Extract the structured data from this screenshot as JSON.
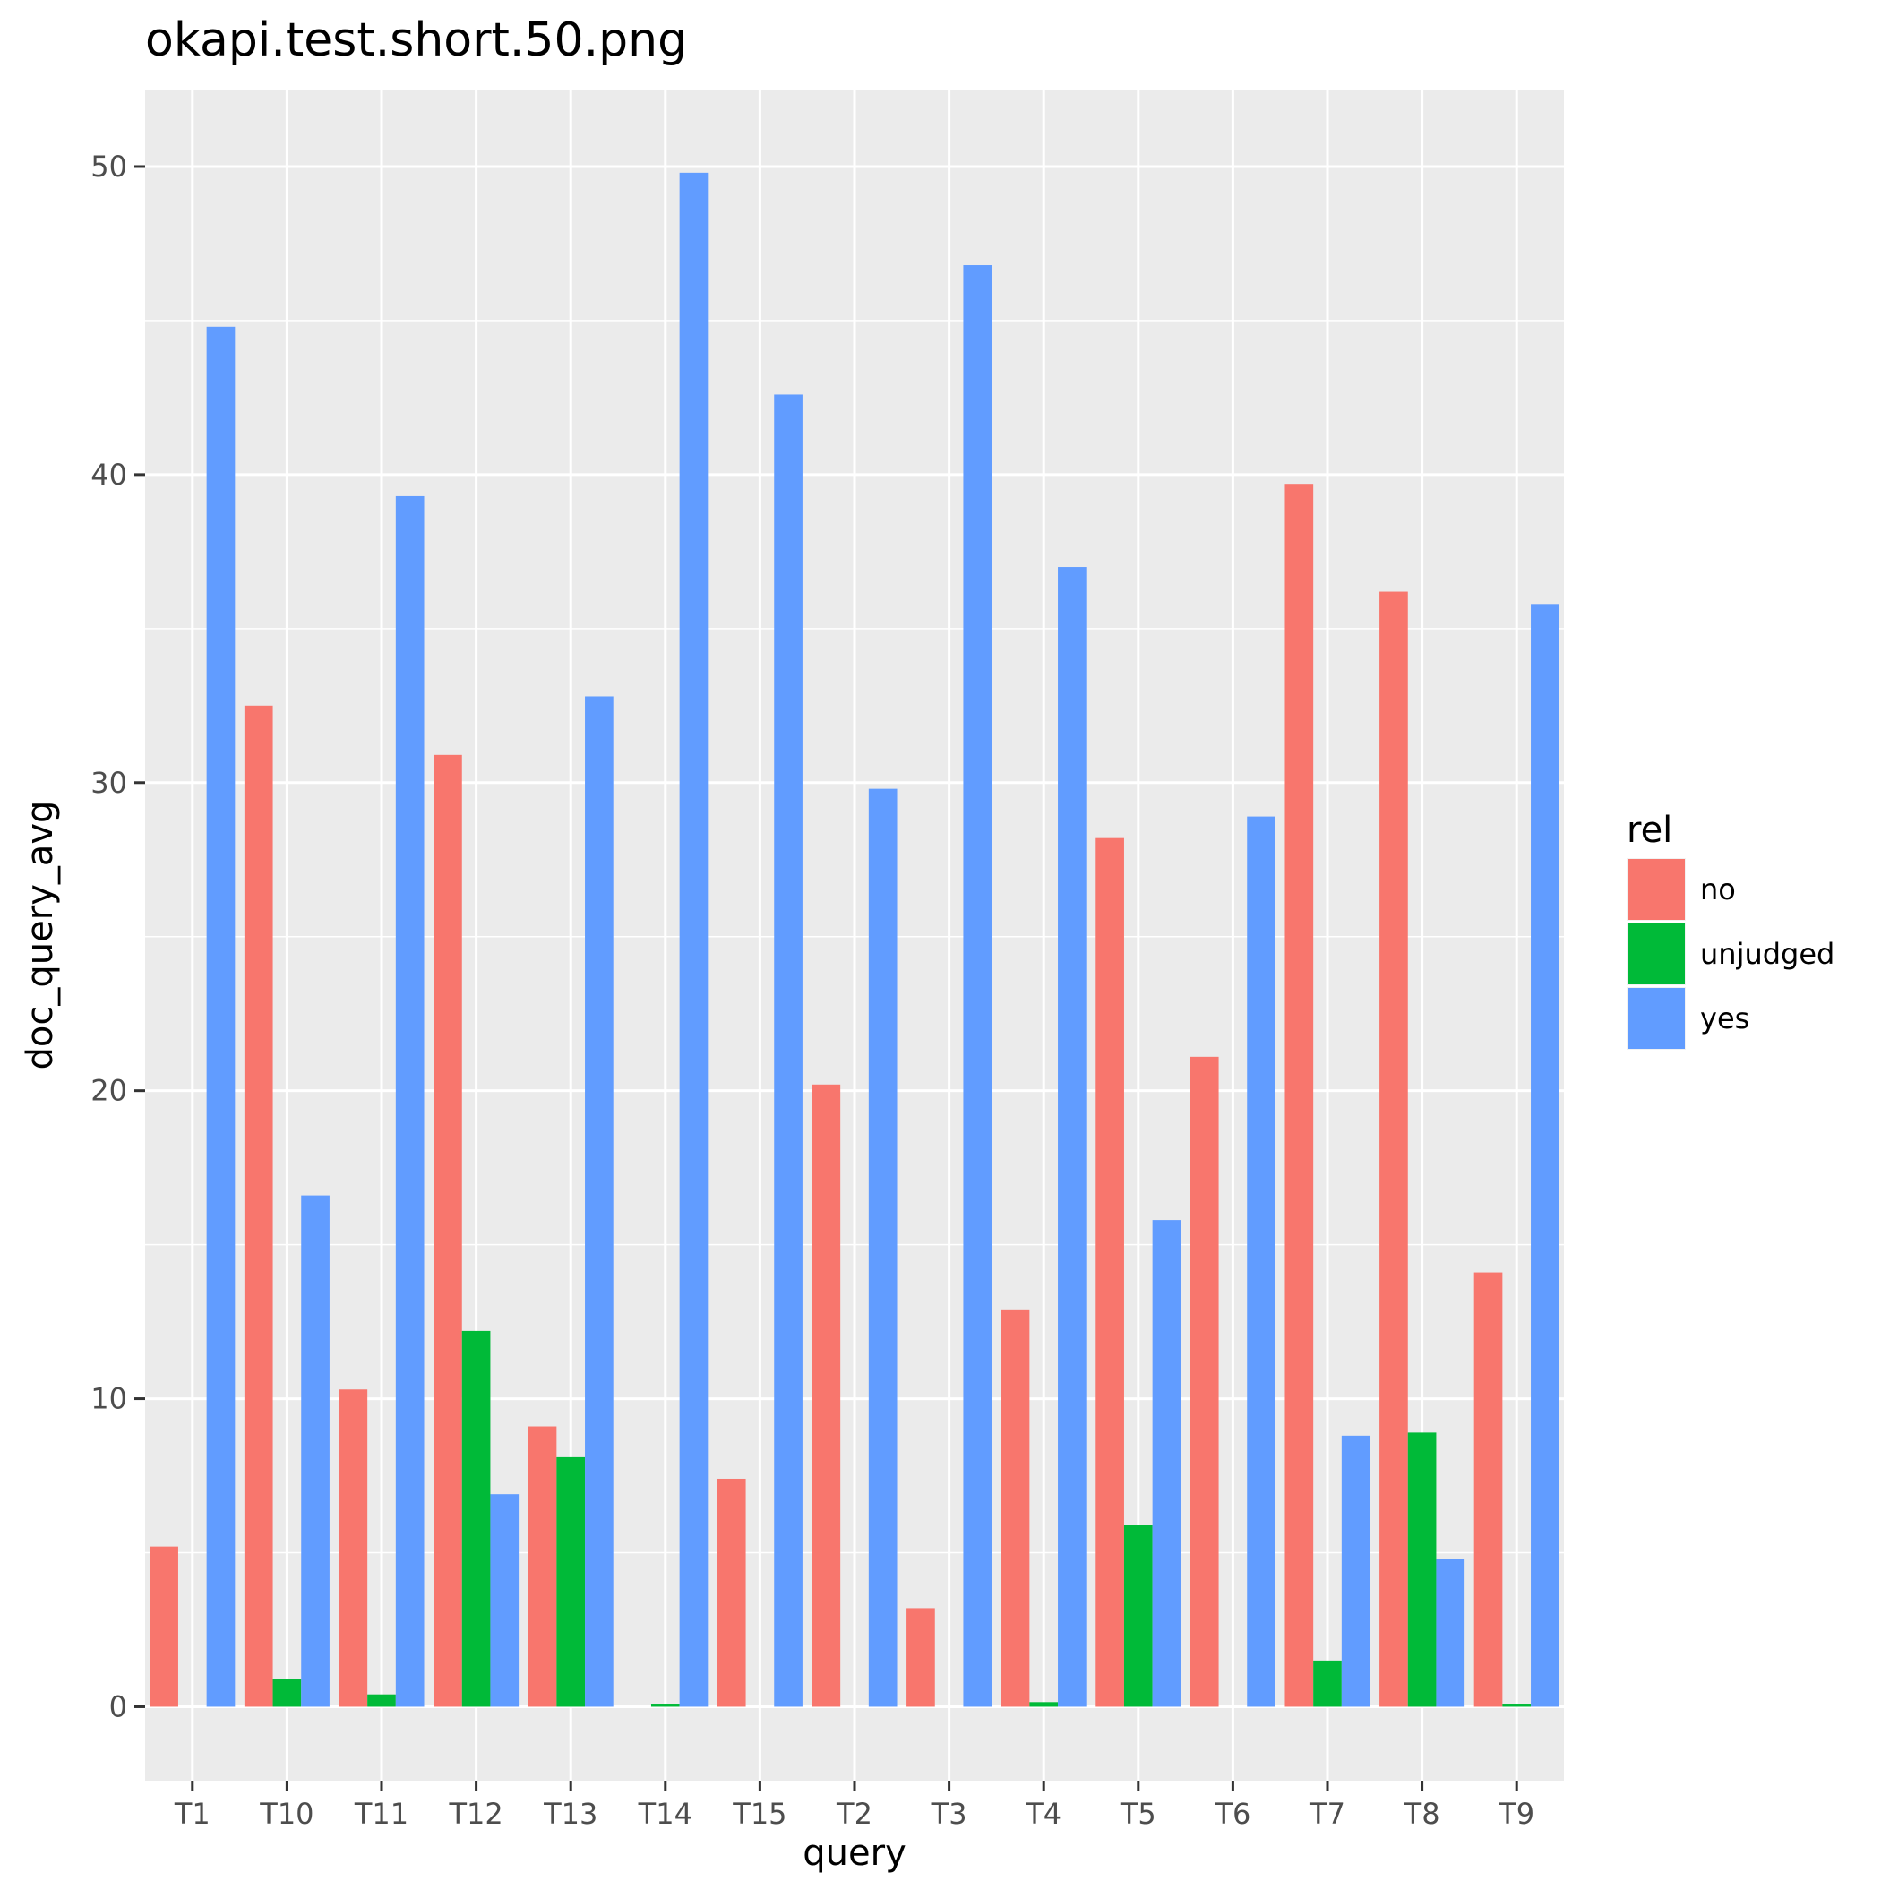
{
  "chart_data": {
    "type": "bar",
    "title": "okapi.test.short.50.png",
    "xlabel": "query",
    "ylabel": "doc_query_avg",
    "categories": [
      "T1",
      "T10",
      "T11",
      "T12",
      "T13",
      "T14",
      "T15",
      "T2",
      "T3",
      "T4",
      "T5",
      "T6",
      "T7",
      "T8",
      "T9"
    ],
    "series": [
      {
        "name": "no",
        "color": "#F8766D",
        "values": [
          5.2,
          32.5,
          10.3,
          30.9,
          9.1,
          null,
          7.4,
          20.2,
          3.2,
          12.9,
          28.2,
          21.1,
          39.7,
          36.2,
          14.1
        ]
      },
      {
        "name": "unjudged",
        "color": "#00BA38",
        "values": [
          null,
          0.9,
          0.4,
          12.2,
          8.1,
          0.1,
          null,
          null,
          null,
          0.15,
          5.9,
          null,
          1.5,
          8.9,
          0.1
        ]
      },
      {
        "name": "yes",
        "color": "#619CFF",
        "values": [
          44.8,
          16.6,
          39.3,
          6.9,
          32.8,
          49.8,
          42.6,
          29.8,
          46.8,
          37.0,
          15.8,
          28.9,
          8.8,
          4.8,
          35.8
        ]
      }
    ],
    "ylim": [
      -2.4,
      52.5
    ],
    "yticks": [
      0,
      10,
      20,
      30,
      40,
      50
    ],
    "legend": {
      "title": "rel",
      "position": "right"
    },
    "grid": true
  }
}
